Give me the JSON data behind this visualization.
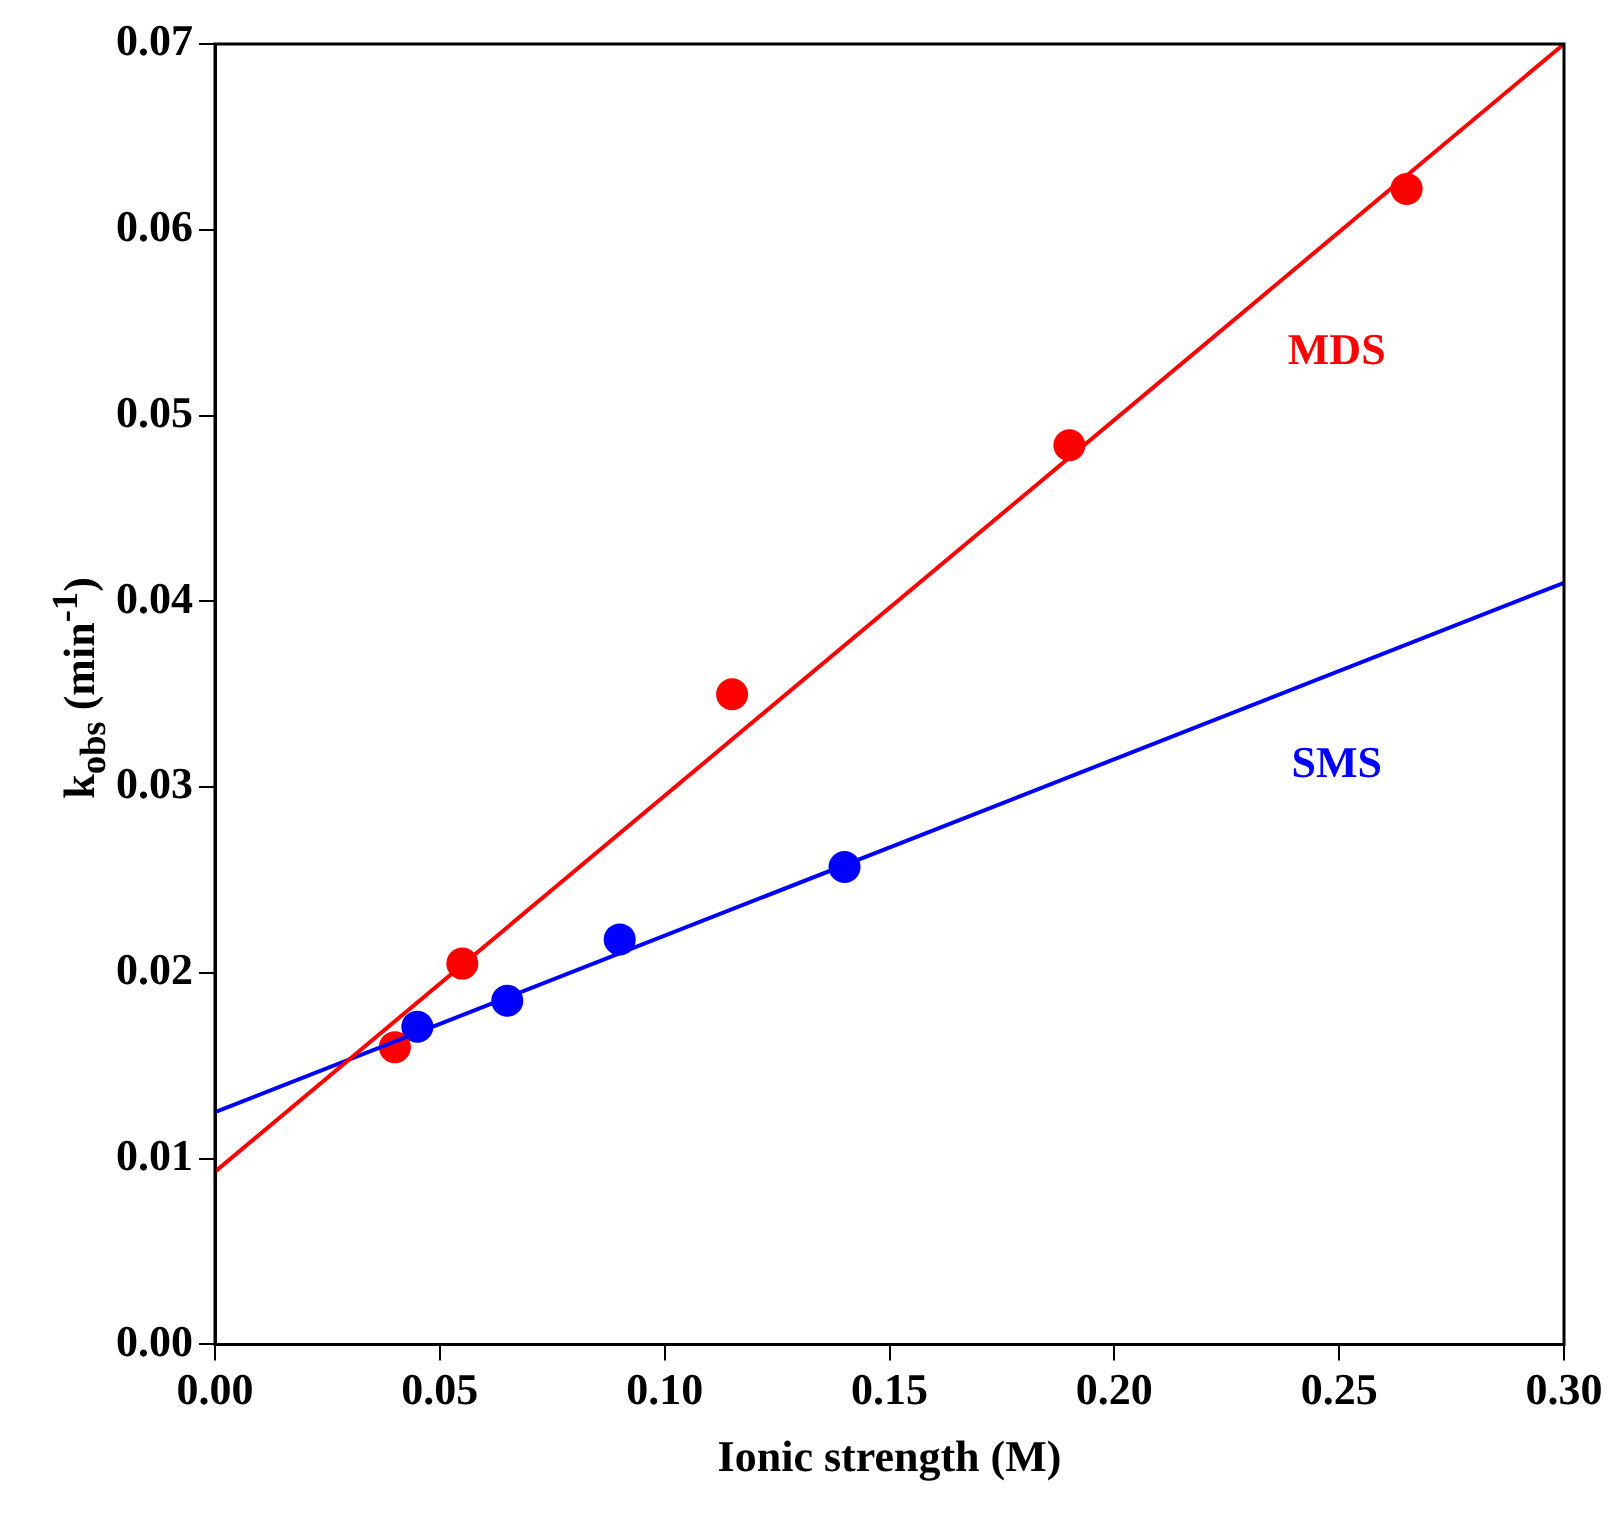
{
  "chart_data": {
    "type": "scatter",
    "xlabel": "Ionic strength (M)",
    "ylabel": "k$_{obs}$ (min$^{-1}$)",
    "xlim": [
      0,
      0.3
    ],
    "ylim": [
      0,
      0.07
    ],
    "xticks": [
      {
        "value": 0,
        "label": "0.00"
      },
      {
        "value": 0.05,
        "label": "0.05"
      },
      {
        "value": 0.1,
        "label": "0.10"
      },
      {
        "value": 0.15,
        "label": "0.15"
      },
      {
        "value": 0.2,
        "label": "0.20"
      },
      {
        "value": 0.25,
        "label": "0.25"
      },
      {
        "value": 0.3,
        "label": "0.30"
      }
    ],
    "yticks": [
      {
        "value": 0,
        "label": "0.00"
      },
      {
        "value": 0.01,
        "label": "0.01"
      },
      {
        "value": 0.02,
        "label": "0.02"
      },
      {
        "value": 0.03,
        "label": "0.03"
      },
      {
        "value": 0.04,
        "label": "0.04"
      },
      {
        "value": 0.05,
        "label": "0.05"
      },
      {
        "value": 0.06,
        "label": "0.06"
      },
      {
        "value": 0.07,
        "label": "0.07"
      }
    ],
    "grid": false,
    "legend": false,
    "series": [
      {
        "type": "line",
        "name": "MDS",
        "marker": "none",
        "color": "#ff0000",
        "x": [
          0,
          0.3
        ],
        "values": [
          0.0093,
          0.07
        ]
      },
      {
        "type": "line",
        "name": "SMS",
        "marker": "none",
        "color": "#0000ff",
        "x": [
          0,
          0.3
        ],
        "values": [
          0.0125,
          0.041
        ]
      },
      {
        "marker": "circle",
        "color": "#ff0000",
        "x": [
          0.04,
          0.055,
          0.115,
          0.19,
          0.265
        ],
        "values": [
          0.016,
          0.0205,
          0.035,
          0.0484,
          0.0622
        ]
      },
      {
        "marker": "circle",
        "color": "#0000ff",
        "x": [
          0.045,
          0.065,
          0.09,
          0.14
        ],
        "values": [
          0.0171,
          0.0185,
          0.0218,
          0.0257
        ]
      }
    ]
  }
}
